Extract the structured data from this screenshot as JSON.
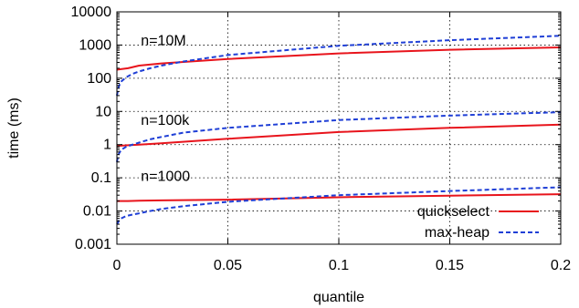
{
  "chart_data": {
    "type": "line",
    "xlabel": "quantile",
    "ylabel": "time (ms)",
    "xlim": [
      0,
      0.2
    ],
    "ylim": [
      0.001,
      10000
    ],
    "yscale": "log",
    "grid": true,
    "legend_position": "bottom-right",
    "x_ticks": [
      {
        "value": 0,
        "label": "0"
      },
      {
        "value": 0.05,
        "label": "0.05"
      },
      {
        "value": 0.1,
        "label": "0.1"
      },
      {
        "value": 0.15,
        "label": "0.15"
      },
      {
        "value": 0.2,
        "label": "0.2"
      }
    ],
    "y_ticks": [
      {
        "value": 0.001,
        "label": "0.001"
      },
      {
        "value": 0.01,
        "label": "0.01"
      },
      {
        "value": 0.1,
        "label": "0.1"
      },
      {
        "value": 1,
        "label": "1"
      },
      {
        "value": 10,
        "label": "10"
      },
      {
        "value": 100,
        "label": "100"
      },
      {
        "value": 1000,
        "label": "1000"
      },
      {
        "value": 10000,
        "label": "10000"
      }
    ],
    "legend": [
      {
        "name": "quickselect",
        "color": "#e8141c",
        "dash": "solid"
      },
      {
        "name": "max-heap",
        "color": "#1f3fd6",
        "dash": "dashed"
      }
    ],
    "annotations": [
      {
        "text": "n=10M",
        "x": 0.01,
        "y": 1000
      },
      {
        "text": "n=100k",
        "x": 0.01,
        "y": 4
      },
      {
        "text": "n=1000",
        "x": 0.01,
        "y": 0.08
      }
    ],
    "series": [
      {
        "name": "quickselect",
        "group": "n=10M",
        "color": "#e8141c",
        "dash": "solid",
        "x": [
          0,
          0.001,
          0.005,
          0.01,
          0.02,
          0.05,
          0.1,
          0.15,
          0.2
        ],
        "y": [
          180,
          185,
          200,
          240,
          280,
          380,
          560,
          720,
          850
        ]
      },
      {
        "name": "max-heap",
        "group": "n=10M",
        "color": "#1f3fd6",
        "dash": "dashed",
        "x": [
          0,
          0.0005,
          0.001,
          0.002,
          0.004,
          0.007,
          0.01,
          0.015,
          0.02,
          0.03,
          0.05,
          0.1,
          0.15,
          0.2
        ],
        "y": [
          30,
          45,
          60,
          80,
          105,
          135,
          160,
          200,
          240,
          320,
          500,
          950,
          1400,
          1900
        ]
      },
      {
        "name": "quickselect",
        "group": "n=100k",
        "color": "#e8141c",
        "dash": "solid",
        "x": [
          0,
          0.001,
          0.005,
          0.01,
          0.02,
          0.05,
          0.1,
          0.15,
          0.2
        ],
        "y": [
          0.9,
          0.92,
          0.96,
          1.0,
          1.1,
          1.5,
          2.4,
          3.2,
          4.0
        ]
      },
      {
        "name": "max-heap",
        "group": "n=100k",
        "color": "#1f3fd6",
        "dash": "dashed",
        "x": [
          0,
          0.0005,
          0.001,
          0.002,
          0.004,
          0.007,
          0.01,
          0.015,
          0.02,
          0.03,
          0.05,
          0.1,
          0.15,
          0.2
        ],
        "y": [
          0.3,
          0.45,
          0.55,
          0.7,
          0.85,
          1.0,
          1.15,
          1.45,
          1.7,
          2.3,
          3.2,
          5.5,
          7.5,
          9.5
        ]
      },
      {
        "name": "quickselect",
        "group": "n=1000",
        "color": "#e8141c",
        "dash": "solid",
        "x": [
          0,
          0.001,
          0.005,
          0.01,
          0.02,
          0.05,
          0.1,
          0.15,
          0.2
        ],
        "y": [
          0.02,
          0.02,
          0.02,
          0.0205,
          0.021,
          0.022,
          0.026,
          0.029,
          0.032
        ]
      },
      {
        "name": "max-heap",
        "group": "n=1000",
        "color": "#1f3fd6",
        "dash": "dashed",
        "x": [
          0,
          0.0005,
          0.001,
          0.002,
          0.004,
          0.007,
          0.01,
          0.015,
          0.02,
          0.03,
          0.05,
          0.1,
          0.15,
          0.2
        ],
        "y": [
          0.004,
          0.0045,
          0.0052,
          0.006,
          0.007,
          0.0078,
          0.0085,
          0.01,
          0.0115,
          0.014,
          0.019,
          0.03,
          0.04,
          0.052
        ]
      }
    ]
  }
}
